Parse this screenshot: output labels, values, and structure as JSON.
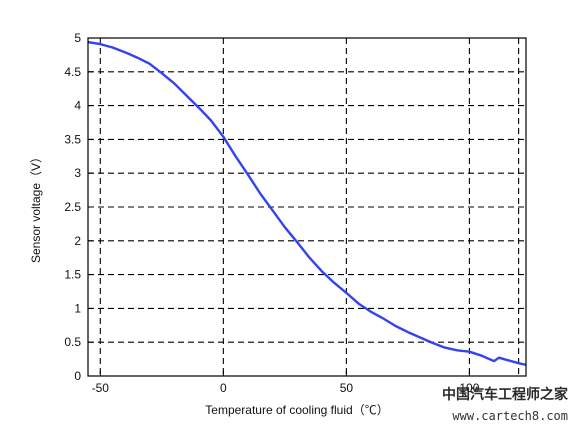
{
  "chart_data": {
    "type": "line",
    "title": "",
    "xlabel": "Temperature of cooling fluid（℃）",
    "ylabel": "Sensor voltage（V）",
    "xlim": [
      -55,
      123
    ],
    "ylim": [
      0,
      5
    ],
    "x_ticks": [
      -50,
      0,
      50,
      100
    ],
    "y_ticks": [
      0,
      0.5,
      1,
      1.5,
      2,
      2.5,
      3,
      3.5,
      4,
      4.5,
      5
    ],
    "x_tick_labels": [
      "-50",
      "0",
      "50",
      "100"
    ],
    "y_tick_labels": [
      "0",
      "0.5",
      "1",
      "1.5",
      "2",
      "2.5",
      "3",
      "3.5",
      "4",
      "4.5",
      "5"
    ],
    "grid": true,
    "grid_x": [
      -50,
      0,
      50,
      100,
      120
    ],
    "series_color": "#3344ee",
    "series": [
      {
        "x": [
          -55,
          -50,
          -45,
          -40,
          -35,
          -30,
          -25,
          -20,
          -15,
          -10,
          -5,
          0,
          5,
          10,
          15,
          20,
          25,
          30,
          35,
          40,
          45,
          50,
          55,
          60,
          65,
          70,
          75,
          80,
          85,
          90,
          95,
          100,
          105,
          110,
          112,
          115,
          120,
          125
        ],
        "y": [
          4.94,
          4.91,
          4.86,
          4.79,
          4.71,
          4.62,
          4.48,
          4.33,
          4.15,
          3.97,
          3.78,
          3.54,
          3.25,
          2.98,
          2.7,
          2.45,
          2.2,
          1.98,
          1.75,
          1.55,
          1.38,
          1.23,
          1.07,
          0.95,
          0.85,
          0.74,
          0.65,
          0.57,
          0.49,
          0.42,
          0.38,
          0.36,
          0.3,
          0.22,
          0.27,
          0.24,
          0.19,
          0.15
        ]
      }
    ]
  },
  "watermark": {
    "cn_text": "中国汽车工程师之家",
    "url_text": "www.cartech8.com"
  }
}
